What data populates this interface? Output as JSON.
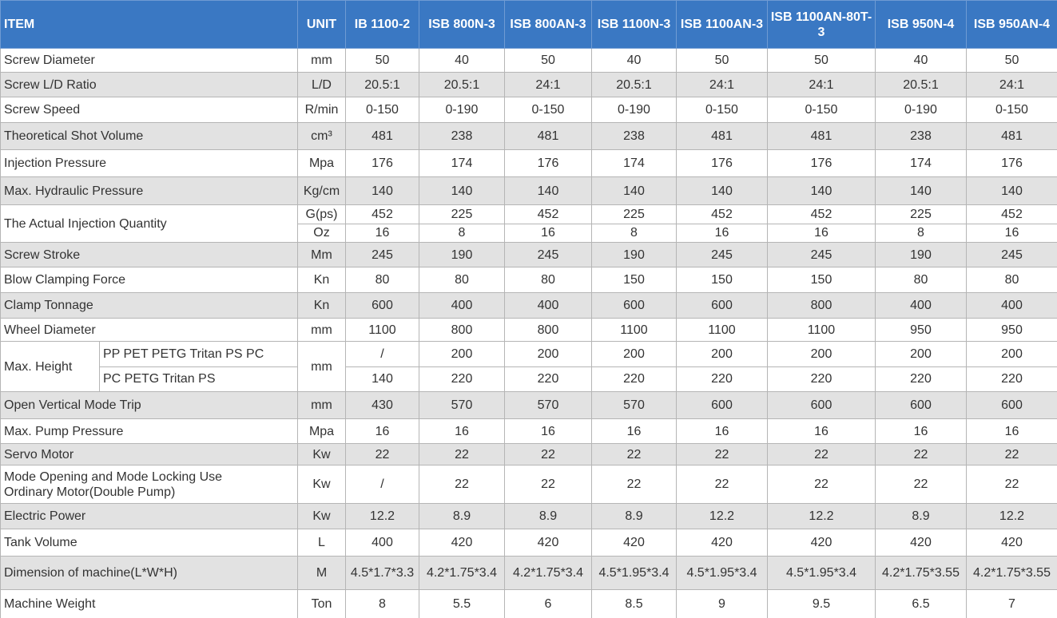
{
  "header": {
    "item": "ITEM",
    "unit": "UNIT",
    "models": [
      "IB 1100-2",
      "ISB 800N-3",
      "ISB 800AN-3",
      "ISB 1100N-3",
      "ISB 1100AN-3",
      "ISB 1100AN-80T-3",
      "ISB 950N-4",
      "ISB 950AN-4"
    ]
  },
  "rows": [
    {
      "item": "Screw Diameter",
      "unit": "mm",
      "values": [
        50,
        40,
        50,
        40,
        50,
        50,
        40,
        50
      ]
    },
    {
      "item": "Screw L/D Ratio",
      "unit": "L/D",
      "values": [
        "20.5:1",
        "20.5:1",
        "24:1",
        "20.5:1",
        "24:1",
        "24:1",
        "20.5:1",
        "24:1"
      ]
    },
    {
      "item": "Screw Speed",
      "unit": "R/min",
      "values": [
        "0-150",
        "0-190",
        "0-150",
        "0-190",
        "0-150",
        "0-150",
        "0-190",
        "0-150"
      ]
    },
    {
      "item": "Theoretical Shot Volume",
      "unit": "cm³",
      "values": [
        481,
        238,
        481,
        238,
        481,
        481,
        238,
        481
      ]
    },
    {
      "item": "Injection Pressure",
      "unit": "Mpa",
      "values": [
        176,
        174,
        176,
        174,
        176,
        176,
        174,
        176
      ]
    },
    {
      "item": "Max. Hydraulic Pressure",
      "unit": "Kg/cm",
      "values": [
        140,
        140,
        140,
        140,
        140,
        140,
        140,
        140
      ]
    },
    {
      "item": "The Actual Injection Quantity",
      "sub": [
        {
          "unit": "G(ps)",
          "values": [
            452,
            225,
            452,
            225,
            452,
            452,
            225,
            452
          ]
        },
        {
          "unit": "Oz",
          "values": [
            16,
            8,
            16,
            8,
            16,
            16,
            8,
            16
          ]
        }
      ]
    },
    {
      "item": "Screw Stroke",
      "unit": "Mm",
      "values": [
        245,
        190,
        245,
        190,
        245,
        245,
        190,
        245
      ]
    },
    {
      "item": "Blow Clamping Force",
      "unit": "Kn",
      "values": [
        80,
        80,
        80,
        150,
        150,
        150,
        80,
        80
      ]
    },
    {
      "item": "Clamp Tonnage",
      "unit": "Kn",
      "values": [
        600,
        400,
        400,
        600,
        600,
        800,
        400,
        400
      ]
    },
    {
      "item": "Wheel Diameter",
      "unit": "mm",
      "values": [
        1100,
        800,
        800,
        1100,
        1100,
        1100,
        950,
        950
      ]
    },
    {
      "item": "Max. Height",
      "unit": "mm",
      "sub": [
        {
          "label": "PP PET PETG Tritan PS PC",
          "values": [
            "/",
            200,
            200,
            200,
            200,
            200,
            200,
            200
          ]
        },
        {
          "label": "PC PETG Tritan PS",
          "values": [
            140,
            220,
            220,
            220,
            220,
            220,
            220,
            220
          ]
        }
      ]
    },
    {
      "item": "Open Vertical Mode Trip",
      "unit": "mm",
      "values": [
        430,
        570,
        570,
        570,
        600,
        600,
        600,
        600
      ]
    },
    {
      "item": "Max. Pump Pressure",
      "unit": "Mpa",
      "values": [
        16,
        16,
        16,
        16,
        16,
        16,
        16,
        16
      ]
    },
    {
      "item": "Servo Motor",
      "unit": "Kw",
      "values": [
        22,
        22,
        22,
        22,
        22,
        22,
        22,
        22
      ]
    },
    {
      "item": "Mode Opening and Mode Locking Use Ordinary Motor(Double Pump)",
      "unit": "Kw",
      "values": [
        "/",
        22,
        22,
        22,
        22,
        22,
        22,
        22
      ]
    },
    {
      "item": "Electric Power",
      "unit": "Kw",
      "values": [
        12.2,
        8.9,
        8.9,
        8.9,
        12.2,
        12.2,
        8.9,
        12.2
      ]
    },
    {
      "item": "Tank Volume",
      "unit": "L",
      "values": [
        400,
        420,
        420,
        420,
        420,
        420,
        420,
        420
      ]
    },
    {
      "item": "Dimension of machine(L*W*H)",
      "unit": "M",
      "values": [
        "4.5*1.7*3.3",
        "4.2*1.75*3.4",
        "4.2*1.75*3.4",
        "4.5*1.95*3.4",
        "4.5*1.95*3.4",
        "4.5*1.95*3.4",
        "4.2*1.75*3.55",
        "4.2*1.75*3.55"
      ]
    },
    {
      "item": "Machine Weight",
      "unit": "Ton",
      "values": [
        8,
        5.5,
        6,
        8.5,
        9,
        9.5,
        6.5,
        7
      ]
    }
  ]
}
